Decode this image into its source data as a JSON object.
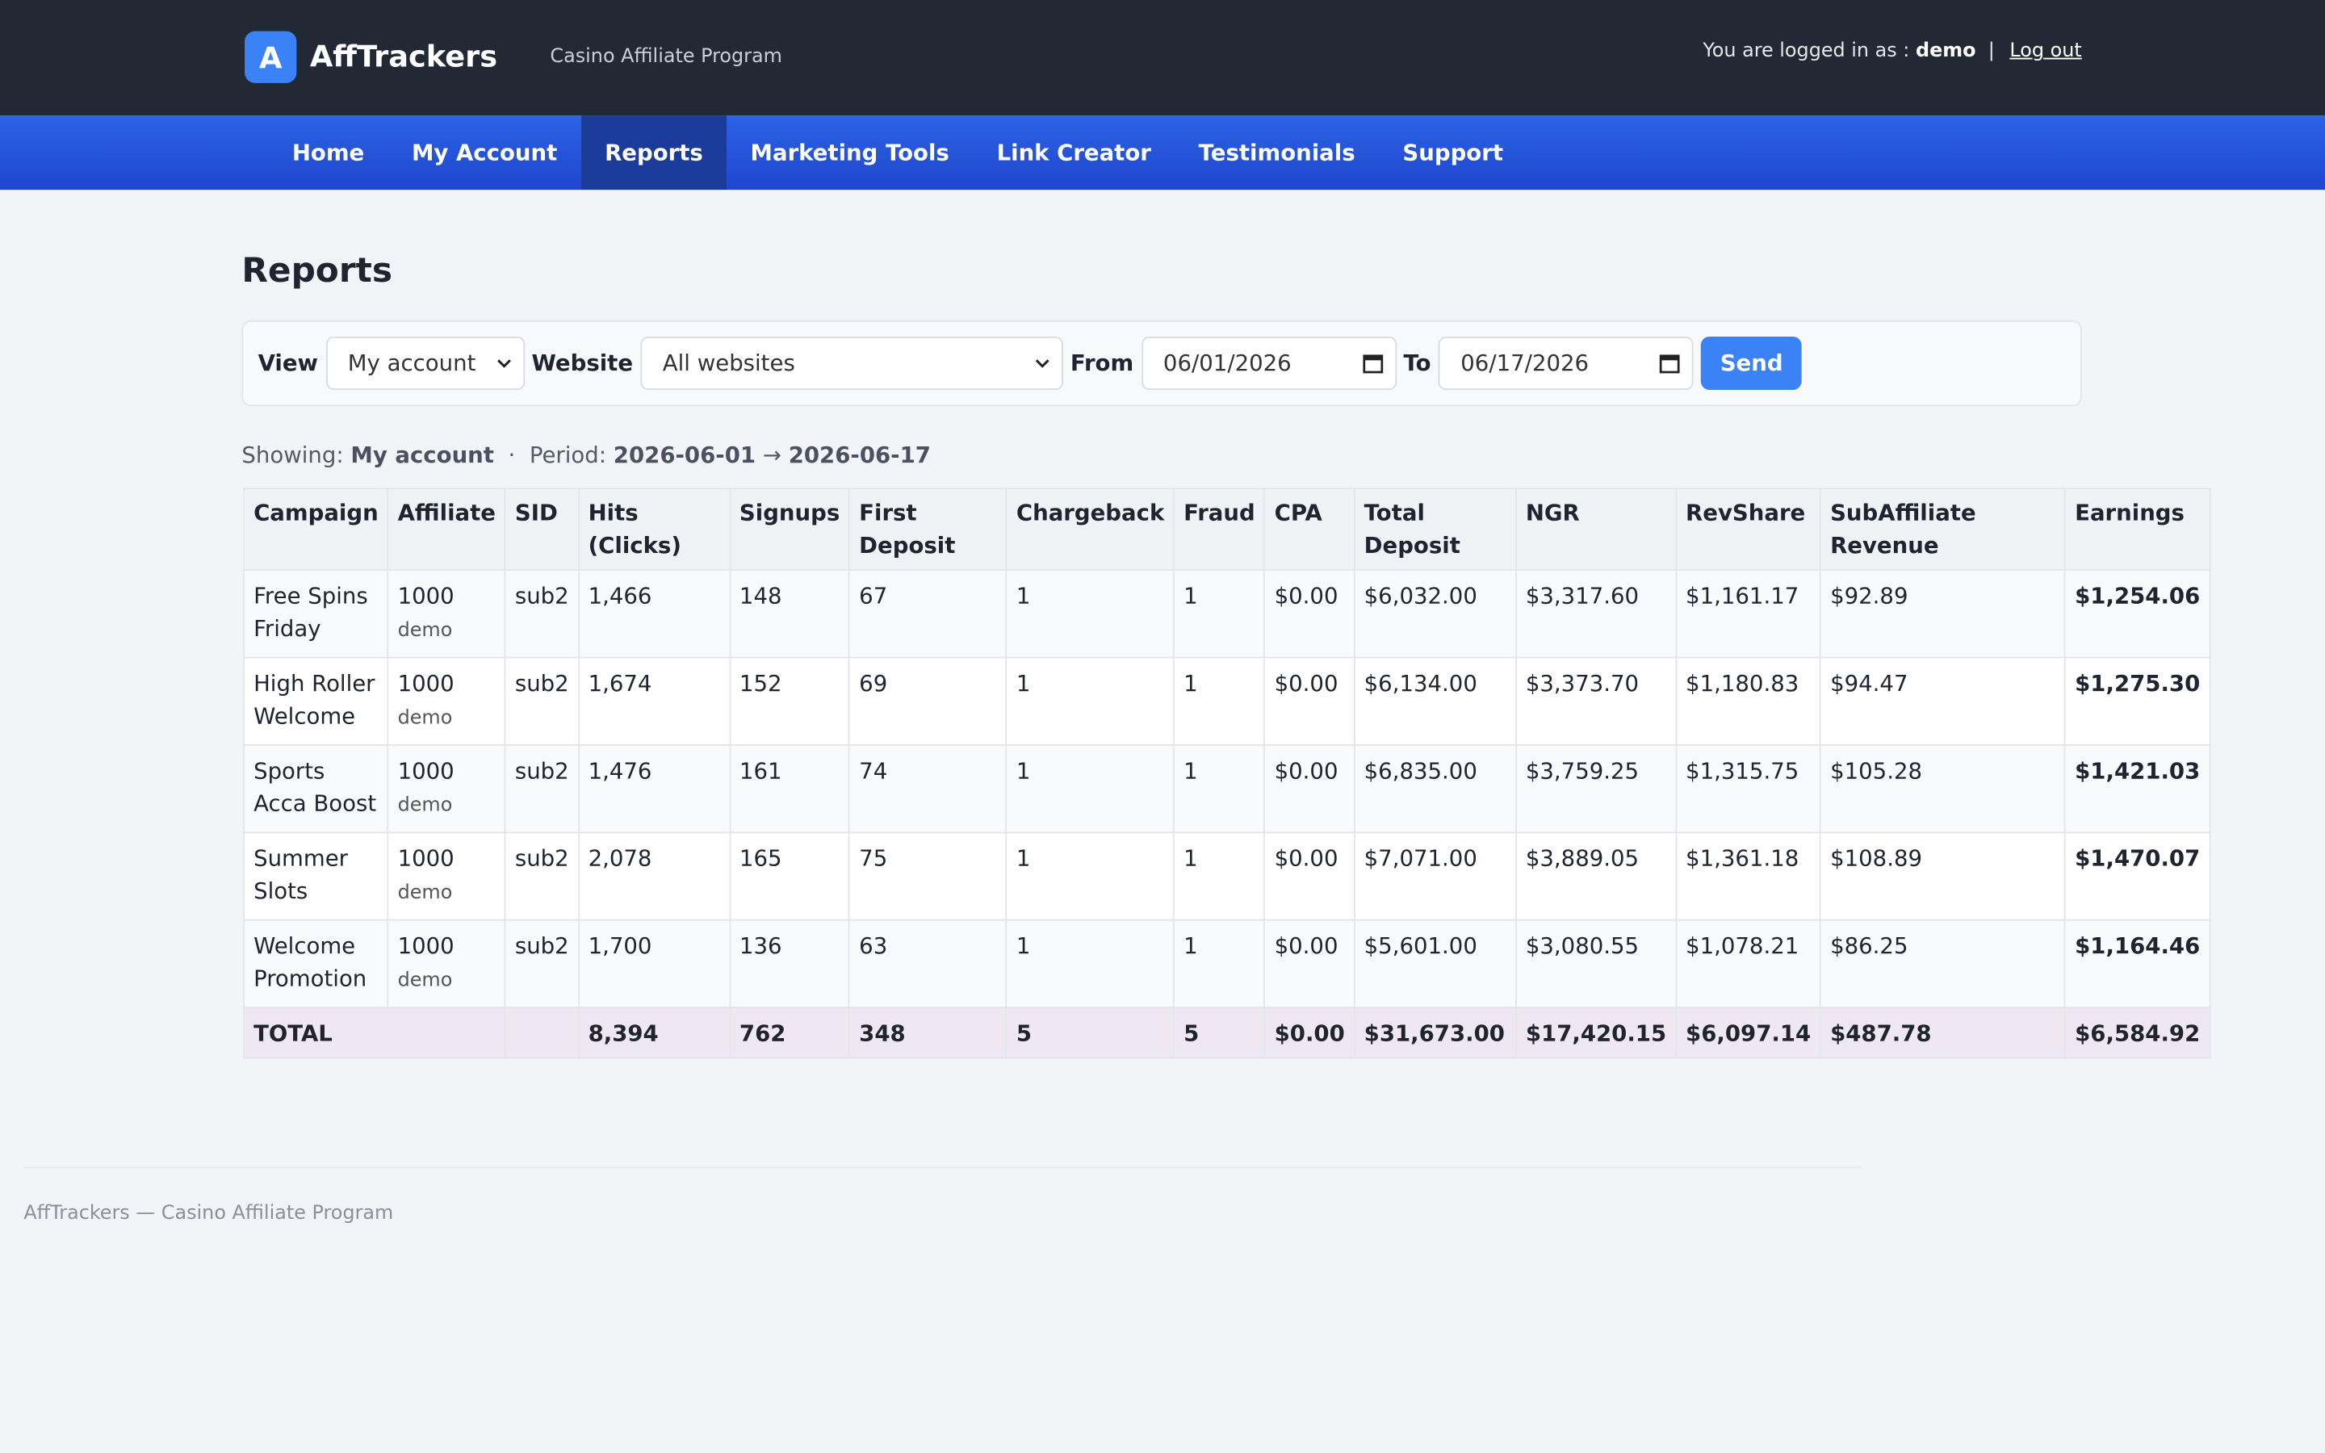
{
  "header": {
    "logo_letter": "A",
    "brand": "AffTrackers",
    "tagline": "Casino Affiliate Program",
    "login_text": "You are logged in as :",
    "user": "demo",
    "logout": "Log out"
  },
  "nav": [
    "Home",
    "My Account",
    "Reports",
    "Marketing Tools",
    "Link Creator",
    "Testimonials",
    "Support"
  ],
  "page": {
    "title": "Reports"
  },
  "filters": {
    "view_label": "View",
    "view_value": "My account",
    "website_label": "Website",
    "website_value": "All websites",
    "from_label": "From",
    "from_value": "06/01/2026",
    "to_label": "To",
    "to_value": "06/17/2026",
    "button": "Send"
  },
  "showing": {
    "label": "Showing:",
    "account": "My account",
    "sep": "·",
    "period_label": "Period:",
    "start": "2026-06-01",
    "arrow": "→",
    "end": "2026-06-17"
  },
  "table": {
    "headers": [
      "Campaign",
      "Affiliate",
      "SID",
      "Hits (Clicks)",
      "Signups",
      "First Deposit",
      "Chargeback",
      "Fraud",
      "CPA",
      "Total Deposit",
      "NGR",
      "RevShare",
      "SubAffiliate Revenue",
      "Earnings"
    ],
    "rows": [
      {
        "campaign": "Free Spins Friday",
        "affiliate_id": "1000",
        "affiliate_name": "demo",
        "cells": [
          "sub2",
          "1,466",
          "148",
          "67",
          "1",
          "1",
          "$0.00",
          "$6,032.00",
          "$3,317.60",
          "$1,161.17",
          "$92.89",
          "$1,254.06"
        ]
      },
      {
        "campaign": "High Roller Welcome",
        "affiliate_id": "1000",
        "affiliate_name": "demo",
        "cells": [
          "sub2",
          "1,674",
          "152",
          "69",
          "1",
          "1",
          "$0.00",
          "$6,134.00",
          "$3,373.70",
          "$1,180.83",
          "$94.47",
          "$1,275.30"
        ]
      },
      {
        "campaign": "Sports Acca Boost",
        "affiliate_id": "1000",
        "affiliate_name": "demo",
        "cells": [
          "sub2",
          "1,476",
          "161",
          "74",
          "1",
          "1",
          "$0.00",
          "$6,835.00",
          "$3,759.25",
          "$1,315.75",
          "$105.28",
          "$1,421.03"
        ]
      },
      {
        "campaign": "Summer Slots",
        "affiliate_id": "1000",
        "affiliate_name": "demo",
        "cells": [
          "sub2",
          "2,078",
          "165",
          "75",
          "1",
          "1",
          "$0.00",
          "$7,071.00",
          "$3,889.05",
          "$1,361.18",
          "$108.89",
          "$1,470.07"
        ]
      },
      {
        "campaign": "Welcome Promotion",
        "affiliate_id": "1000",
        "affiliate_name": "demo",
        "cells": [
          "sub2",
          "1,700",
          "136",
          "63",
          "1",
          "1",
          "$0.00",
          "$5,601.00",
          "$3,080.55",
          "$1,078.21",
          "$86.25",
          "$1,164.46"
        ]
      }
    ],
    "total": {
      "label": "TOTAL",
      "cells": [
        "8,394",
        "762",
        "348",
        "5",
        "5",
        "$0.00",
        "$31,673.00",
        "$17,420.15",
        "$6,097.14",
        "$487.78",
        "$6,584.92"
      ]
    }
  },
  "footer": {
    "text": "AffTrackers — Casino Affiliate Program"
  }
}
